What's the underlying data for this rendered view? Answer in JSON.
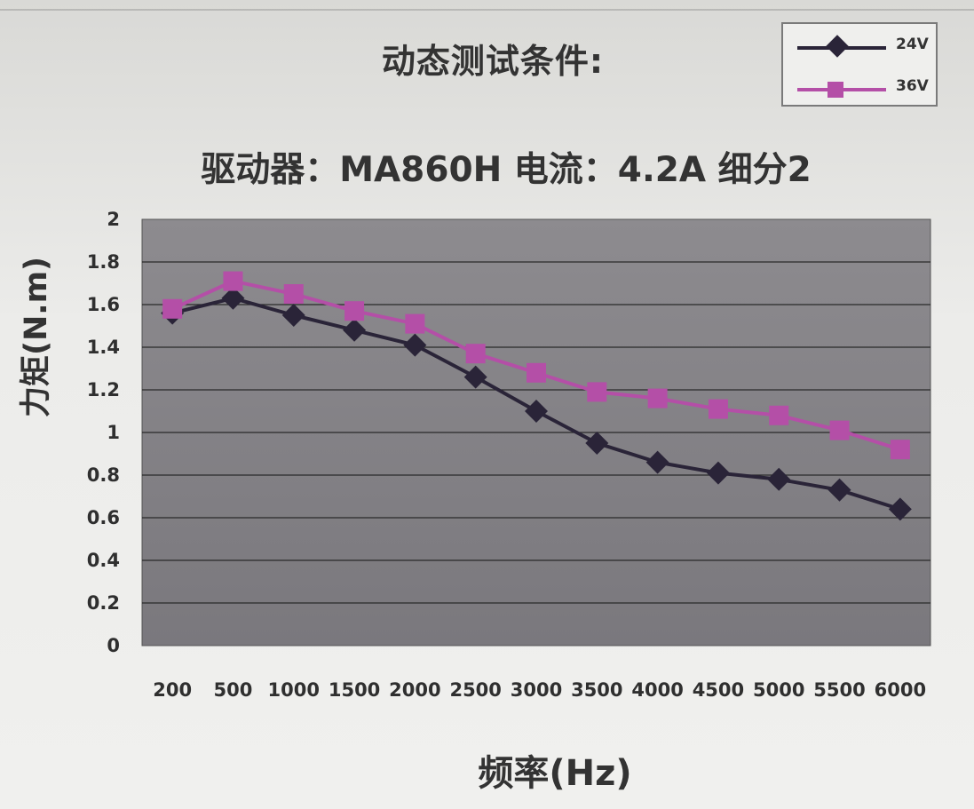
{
  "chart_data": {
    "type": "line",
    "title": "动态测试条件:",
    "subtitle": "驱动器：MA860H   电流：4.2A  细分2",
    "xlabel": "频率(Hz)",
    "ylabel": "力矩(N.m)",
    "categories": [
      "200",
      "500",
      "1000",
      "1500",
      "2000",
      "2500",
      "3000",
      "3500",
      "4000",
      "4500",
      "5000",
      "5500",
      "6000"
    ],
    "ylim": [
      0,
      2
    ],
    "yticks": [
      "0",
      "0.2",
      "0.4",
      "0.6",
      "0.8",
      "1",
      "1.2",
      "1.4",
      "1.6",
      "1.8",
      "2"
    ],
    "grid": true,
    "legend": "top-right",
    "series": [
      {
        "name": "24V",
        "color": "#2a2438",
        "marker": "diamond",
        "values": [
          1.56,
          1.63,
          1.55,
          1.48,
          1.41,
          1.26,
          1.1,
          0.95,
          0.86,
          0.81,
          0.78,
          0.73,
          0.64
        ]
      },
      {
        "name": "36V",
        "color": "#b44fa7",
        "marker": "square",
        "values": [
          1.58,
          1.71,
          1.65,
          1.57,
          1.51,
          1.37,
          1.28,
          1.19,
          1.16,
          1.11,
          1.08,
          1.01,
          0.92
        ]
      }
    ]
  }
}
